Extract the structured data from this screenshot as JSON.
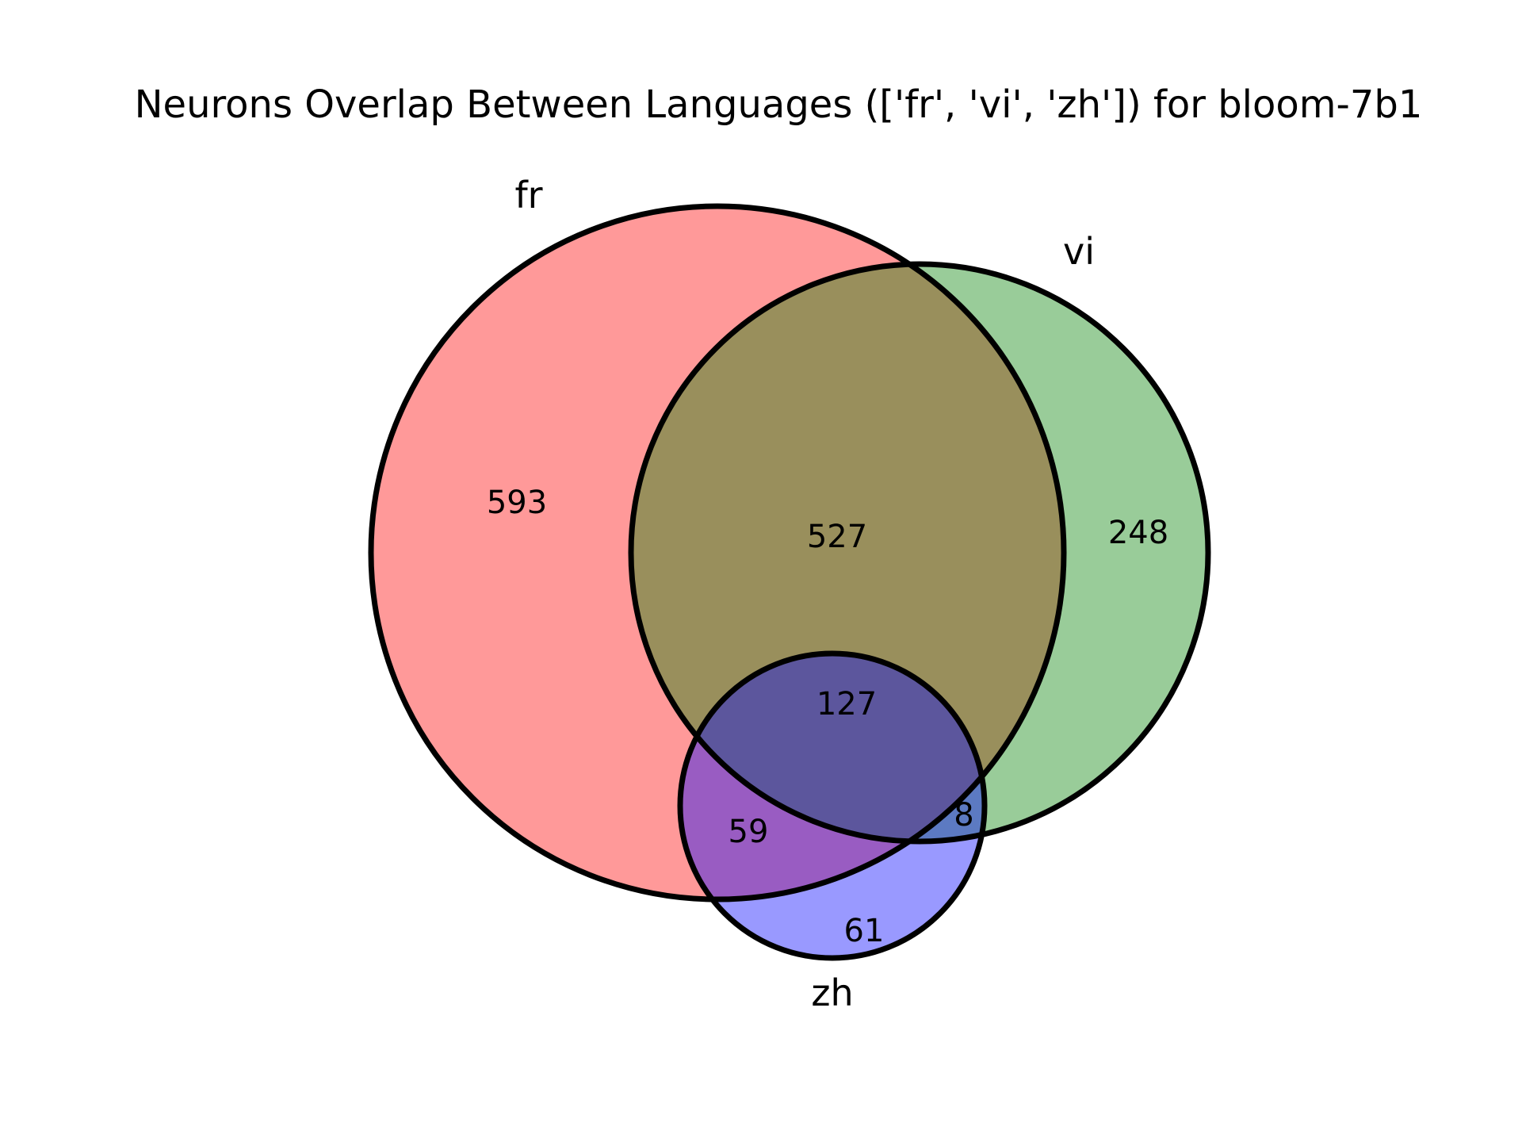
{
  "title": "Neurons Overlap Between Languages (['fr', 'vi', 'zh']) for bloom-7b1",
  "sets": [
    {
      "name": "fr",
      "color": "#ff0000"
    },
    {
      "name": "vi",
      "color": "#008000"
    },
    {
      "name": "zh",
      "color": "#0000ff"
    }
  ],
  "regions": {
    "fr_only": "593",
    "vi_only": "248",
    "zh_only": "61",
    "fr_vi": "527",
    "fr_zh": "59",
    "vi_zh": "8",
    "fr_vi_zh": "127"
  },
  "chart_data": {
    "type": "venn3",
    "title": "Neurons Overlap Between Languages (['fr', 'vi', 'zh']) for bloom-7b1",
    "set_labels": [
      "fr",
      "vi",
      "zh"
    ],
    "subsets": {
      "100": 593,
      "010": 248,
      "001": 61,
      "110": 527,
      "101": 59,
      "011": 8,
      "111": 127
    }
  }
}
